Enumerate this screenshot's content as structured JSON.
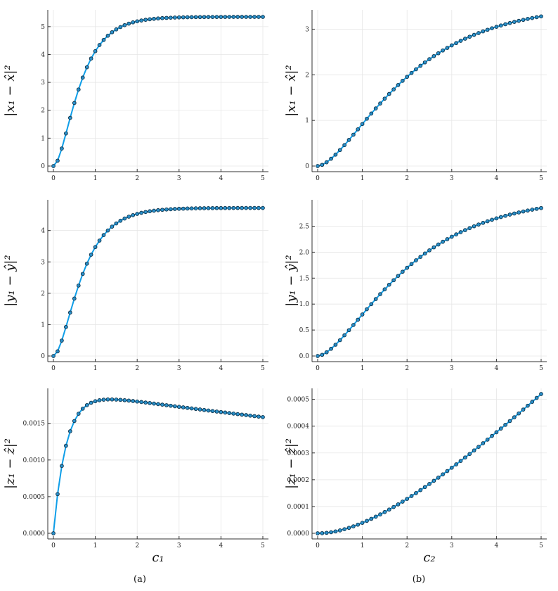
{
  "figure": {
    "sublabels": [
      "(a)",
      "(b)"
    ]
  },
  "chart_data": [
    {
      "type": "scatter",
      "panel": "top-left",
      "ylabel": "|x₁ − x̂|²",
      "xlabel": "",
      "xlim": [
        0,
        5
      ],
      "ylim": [
        0,
        5.4
      ],
      "xticks": [
        0,
        1,
        2,
        3,
        4,
        5
      ],
      "xtick_labels": [
        "0",
        "1",
        "2",
        "3",
        "4",
        "5"
      ],
      "yticks": [
        0,
        1,
        2,
        3,
        4,
        5
      ],
      "ytick_labels": [
        "0",
        "1",
        "2",
        "3",
        "4",
        "5"
      ],
      "grid": true,
      "series": [
        {
          "curve": "sat",
          "L": 5.35,
          "k": 2.1,
          "peak": 0,
          "decay": 0,
          "kind": "sat"
        }
      ]
    },
    {
      "type": "scatter",
      "panel": "top-right",
      "ylabel": "|x₁ − x̂|²",
      "xlabel": "",
      "xlim": [
        0,
        5
      ],
      "ylim": [
        0,
        3.3
      ],
      "xticks": [
        0,
        1,
        2,
        3,
        4,
        5
      ],
      "xtick_labels": [
        "0",
        "1",
        "2",
        "3",
        "4",
        "5"
      ],
      "yticks": [
        0,
        1,
        2,
        3
      ],
      "ytick_labels": [
        "0",
        "1",
        "2",
        "3"
      ],
      "grid": true,
      "series": [
        {
          "kind": "sig",
          "L": 3.72,
          "k": 0.62,
          "p": 1.75,
          "end": 3.28
        }
      ]
    },
    {
      "type": "scatter",
      "panel": "middle-left",
      "ylabel": "|y₁ − ŷ|²",
      "xlabel": "",
      "xlim": [
        0,
        5
      ],
      "ylim": [
        0,
        4.8
      ],
      "xticks": [
        0,
        1,
        2,
        3,
        4,
        5
      ],
      "xtick_labels": [
        "0",
        "1",
        "2",
        "3",
        "4",
        "5"
      ],
      "yticks": [
        0,
        1,
        2,
        3,
        4
      ],
      "ytick_labels": [
        "0",
        "1",
        "2",
        "3",
        "4"
      ],
      "grid": true,
      "series": [
        {
          "kind": "sat",
          "L": 4.72,
          "k": 1.95
        }
      ]
    },
    {
      "type": "scatter",
      "panel": "middle-right",
      "ylabel": "|y₁ − ŷ|²",
      "xlabel": "",
      "xlim": [
        0,
        5
      ],
      "ylim": [
        0,
        2.9
      ],
      "xticks": [
        0,
        1,
        2,
        3,
        4,
        5
      ],
      "xtick_labels": [
        "0",
        "1",
        "2",
        "3",
        "4",
        "5"
      ],
      "yticks": [
        0,
        0.5,
        1.0,
        1.5,
        2.0,
        2.5
      ],
      "ytick_labels": [
        "0.0",
        "0.5",
        "1.0",
        "1.5",
        "2.0",
        "2.5"
      ],
      "grid": true,
      "series": [
        {
          "kind": "sig",
          "L": 3.25,
          "k": 0.62,
          "p": 1.75,
          "end": 2.85
        }
      ]
    },
    {
      "type": "scatter",
      "panel": "bottom-left",
      "ylabel": "|z₁ − ẑ|²",
      "xlabel": "c₁",
      "xlim": [
        0,
        5
      ],
      "ylim": [
        0,
        0.0019
      ],
      "xticks": [
        0,
        1,
        2,
        3,
        4,
        5
      ],
      "xtick_labels": [
        "0",
        "1",
        "2",
        "3",
        "4",
        "5"
      ],
      "yticks": [
        0,
        0.0005,
        0.001,
        0.0015
      ],
      "ytick_labels": [
        "0.0000",
        "0.0005",
        "0.0010",
        "0.0015"
      ],
      "grid": true,
      "series": [
        {
          "kind": "peak",
          "L": 0.00196,
          "k": 3.2,
          "d": 0.0425
        }
      ]
    },
    {
      "type": "scatter",
      "panel": "bottom-right",
      "ylabel": "|z₁ − ẑ|²",
      "xlabel": "c₂",
      "xlim": [
        0,
        5
      ],
      "ylim": [
        0,
        0.00052
      ],
      "xticks": [
        0,
        1,
        2,
        3,
        4,
        5
      ],
      "xtick_labels": [
        "0",
        "1",
        "2",
        "3",
        "4",
        "5"
      ],
      "yticks": [
        0,
        0.0001,
        0.0002,
        0.0003,
        0.0004,
        0.0005
      ],
      "ytick_labels": [
        "0.0000",
        "0.0001",
        "0.0002",
        "0.0003",
        "0.0004",
        "0.0005"
      ],
      "grid": true,
      "series": [
        {
          "kind": "pow",
          "end": 0.00052,
          "a": 2.05,
          "b": 0.35
        }
      ]
    }
  ]
}
